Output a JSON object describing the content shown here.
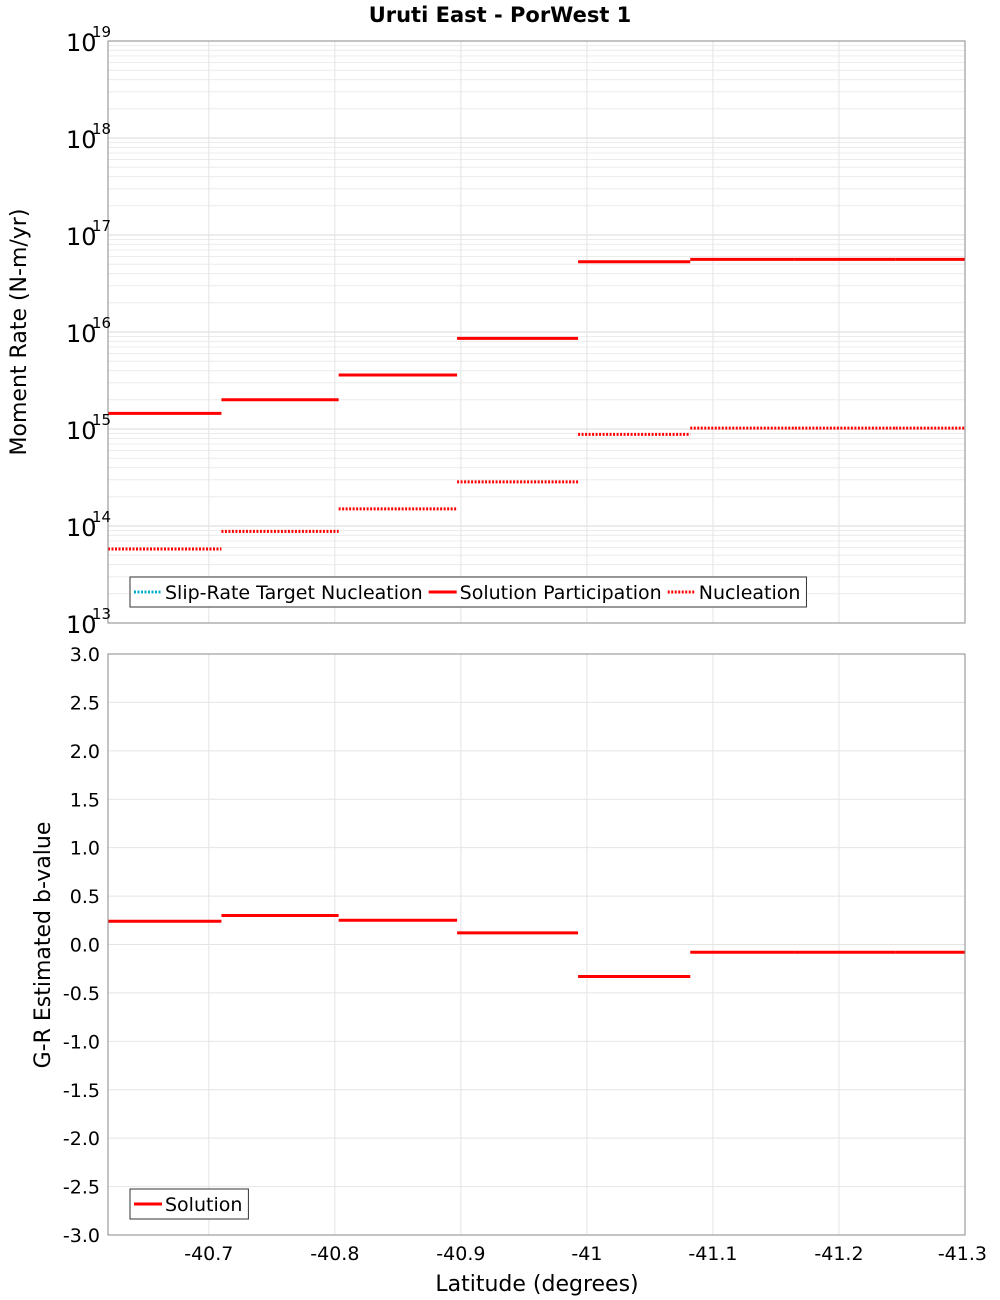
{
  "title": "Uruti East - PorWest 1",
  "chart_data": [
    {
      "type": "line",
      "subtype": "step",
      "title": "Uruti East - PorWest 1",
      "ylabel": "Moment Rate (N-m/yr)",
      "yscale": "log",
      "ylim": [
        10000000000000.0,
        1e+19
      ],
      "y_tick_exponents": [
        "13",
        "14",
        "15",
        "16",
        "17",
        "18",
        "19"
      ],
      "y_tick_base": "10",
      "xlim": [
        -40.62,
        -41.3
      ],
      "grid": true,
      "legend": {
        "position": "bottom-left",
        "entries": [
          {
            "name": "Slip-Rate Target Nucleation",
            "color": "#00b0c8",
            "style": "dotted"
          },
          {
            "name": "Solution Participation",
            "color": "#ff0000",
            "style": "solid"
          },
          {
            "name": "Nucleation",
            "color": "#ff0000",
            "style": "dotted"
          }
        ]
      },
      "series": [
        {
          "name": "Solution Participation",
          "color": "#ff0000",
          "style": "solid",
          "segments": [
            {
              "x0": -40.62,
              "x1": -40.71,
              "y": 1450000000000000.0
            },
            {
              "x0": -40.71,
              "x1": -40.803,
              "y": 2000000000000000.0
            },
            {
              "x0": -40.803,
              "x1": -40.897,
              "y": 3600000000000000.0
            },
            {
              "x0": -40.897,
              "x1": -40.993,
              "y": 8600000000000000.0
            },
            {
              "x0": -40.993,
              "x1": -41.082,
              "y": 5.3e+16
            },
            {
              "x0": -41.082,
              "x1": -41.165,
              "y": 5.6e+16
            },
            {
              "x0": -41.165,
              "x1": -41.245,
              "y": 5.6e+16
            },
            {
              "x0": -41.245,
              "x1": -41.3,
              "y": 5.6e+16
            }
          ]
        },
        {
          "name": "Nucleation",
          "color": "#ff0000",
          "style": "dotted",
          "segments": [
            {
              "x0": -40.62,
              "x1": -40.71,
              "y": 58000000000000.0
            },
            {
              "x0": -40.71,
              "x1": -40.803,
              "y": 88000000000000.0
            },
            {
              "x0": -40.803,
              "x1": -40.897,
              "y": 150000000000000.0
            },
            {
              "x0": -40.897,
              "x1": -40.993,
              "y": 285000000000000.0
            },
            {
              "x0": -40.993,
              "x1": -41.082,
              "y": 880000000000000.0
            },
            {
              "x0": -41.082,
              "x1": -41.165,
              "y": 1020000000000000.0
            },
            {
              "x0": -41.165,
              "x1": -41.245,
              "y": 1020000000000000.0
            },
            {
              "x0": -41.245,
              "x1": -41.3,
              "y": 1020000000000000.0
            }
          ]
        }
      ]
    },
    {
      "type": "line",
      "subtype": "step",
      "xlabel": "Latitude (degrees)",
      "ylabel": "G-R Estimated b-value",
      "ylim": [
        -3.0,
        3.0
      ],
      "y_ticks": [
        3.0,
        2.5,
        2.0,
        1.5,
        1.0,
        0.5,
        0.0,
        -0.5,
        -1.0,
        -1.5,
        -2.0,
        -2.5,
        -3.0
      ],
      "y_tick_labels": [
        "3.0",
        "2.5",
        "2.0",
        "1.5",
        "1.0",
        "0.5",
        "0.0",
        "-0.5",
        "-1.0",
        "-1.5",
        "-2.0",
        "-2.5",
        "-3.0"
      ],
      "xlim": [
        -40.62,
        -41.3
      ],
      "x_ticks": [
        -40.7,
        -40.8,
        -40.9,
        -41,
        -41.1,
        -41.2,
        -41.3
      ],
      "x_tick_labels": [
        "-40.7",
        "-40.8",
        "-40.9",
        "-41",
        "-41.1",
        "-41.2",
        "-41.3"
      ],
      "grid": true,
      "legend": {
        "position": "bottom-left",
        "entries": [
          {
            "name": "Solution",
            "color": "#ff0000",
            "style": "solid"
          }
        ]
      },
      "series": [
        {
          "name": "Solution",
          "color": "#ff0000",
          "style": "solid",
          "segments": [
            {
              "x0": -40.62,
              "x1": -40.71,
              "y": 0.24
            },
            {
              "x0": -40.71,
              "x1": -40.803,
              "y": 0.3
            },
            {
              "x0": -40.803,
              "x1": -40.897,
              "y": 0.25
            },
            {
              "x0": -40.897,
              "x1": -40.993,
              "y": 0.12
            },
            {
              "x0": -40.993,
              "x1": -41.082,
              "y": -0.33
            },
            {
              "x0": -41.082,
              "x1": -41.165,
              "y": -0.08
            },
            {
              "x0": -41.165,
              "x1": -41.245,
              "y": -0.08
            },
            {
              "x0": -41.245,
              "x1": -41.3,
              "y": -0.08
            }
          ]
        }
      ]
    }
  ]
}
